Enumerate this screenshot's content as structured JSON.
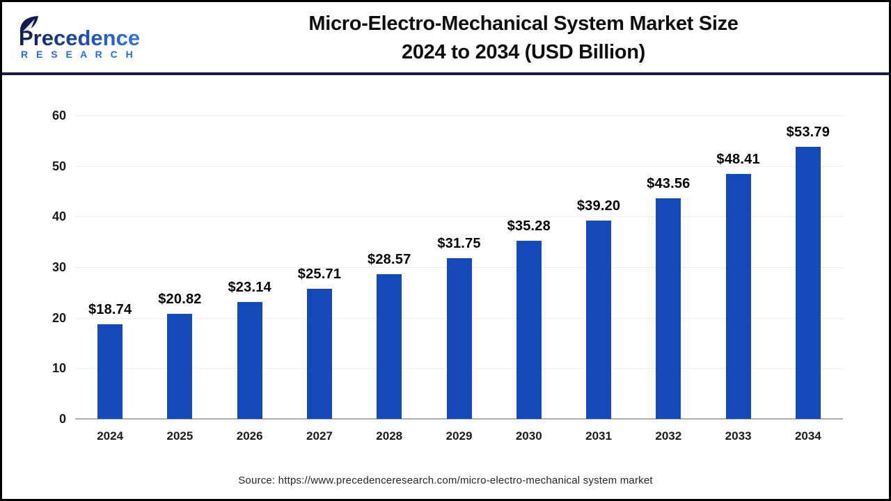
{
  "header": {
    "logo": {
      "brand": "Precedence",
      "subtitle": "R E S E A R C H",
      "colors": {
        "navy": "#131A4F",
        "blue": "#3276DD",
        "subtitle_blue": "#2B6BD8"
      }
    },
    "title_line1": "Micro-Electro-Mechanical System Market Size",
    "title_line2": "2024 to 2034 (USD Billion)"
  },
  "chart_data": {
    "type": "bar",
    "title": "Micro-Electro-Mechanical System Market Size 2024 to 2034 (USD Billion)",
    "categories": [
      "2024",
      "2025",
      "2026",
      "2027",
      "2028",
      "2029",
      "2030",
      "2031",
      "2032",
      "2033",
      "2034"
    ],
    "values": [
      18.74,
      20.82,
      23.14,
      25.71,
      28.57,
      31.75,
      35.28,
      39.2,
      43.56,
      48.41,
      53.79
    ],
    "value_labels": [
      "$18.74",
      "$20.82",
      "$23.14",
      "$25.71",
      "$28.57",
      "$31.75",
      "$35.28",
      "$39.20",
      "$43.56",
      "$48.41",
      "$53.79"
    ],
    "xlabel": "",
    "ylabel": "",
    "ylim": [
      0,
      60
    ],
    "yticks": [
      0,
      10,
      20,
      30,
      40,
      50,
      60
    ],
    "grid": true,
    "legend": "none",
    "bar_color": "#1548B8",
    "gridline_color": "#ededed",
    "axis_line_color": "#b0b0b0"
  },
  "footer": {
    "source": "Source: https://www.precedenceresearch.com/micro-electro-mechanical system market"
  }
}
